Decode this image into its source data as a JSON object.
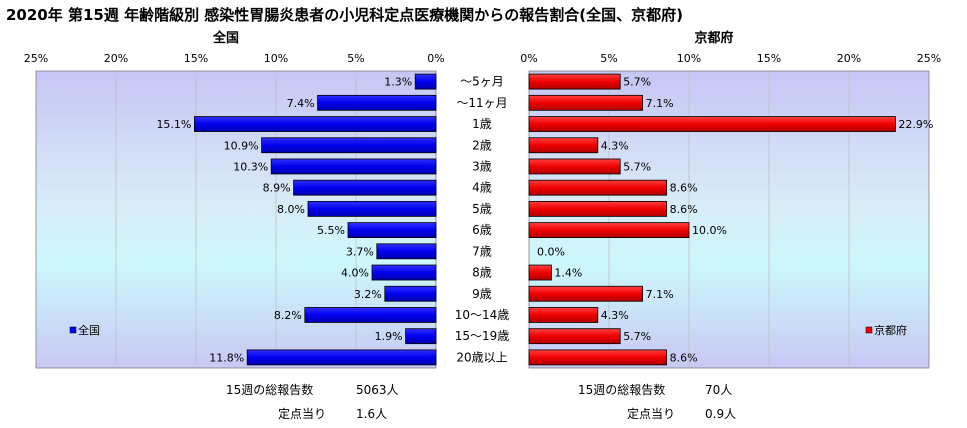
{
  "title": "2020年 第15週 年齢階級別 感染性胃腸炎患者の小児科定点医療機関からの報告割合(全国、京都府)",
  "chart_data": {
    "type": "bar",
    "orientation": "horizontal",
    "categories": [
      "～5ヶ月",
      "～11ヶ月",
      "1歳",
      "2歳",
      "3歳",
      "4歳",
      "5歳",
      "6歳",
      "7歳",
      "8歳",
      "9歳",
      "10～14歳",
      "15～19歳",
      "20歳以上"
    ],
    "xlim": [
      0,
      25
    ],
    "grid": true,
    "left_panel": {
      "title": "全国",
      "legend": "全国",
      "color": "#0000ff",
      "ticks": [
        "25%",
        "20%",
        "15%",
        "10%",
        "5%",
        "0%"
      ],
      "values": [
        1.3,
        7.4,
        15.1,
        10.9,
        10.3,
        8.9,
        8.0,
        5.5,
        3.7,
        4.0,
        3.2,
        8.2,
        1.9,
        11.8
      ],
      "labels": [
        "1.3%",
        "7.4%",
        "15.1%",
        "10.9%",
        "10.3%",
        "8.9%",
        "8.0%",
        "5.5%",
        "3.7%",
        "4.0%",
        "3.2%",
        "8.2%",
        "1.9%",
        "11.8%"
      ]
    },
    "right_panel": {
      "title": "京都府",
      "legend": "京都府",
      "color": "#ff0000",
      "ticks": [
        "0%",
        "5%",
        "10%",
        "15%",
        "20%",
        "25%"
      ],
      "values": [
        5.7,
        7.1,
        22.9,
        4.3,
        5.7,
        8.6,
        8.6,
        10.0,
        0.0,
        1.4,
        7.1,
        4.3,
        5.7,
        8.6
      ],
      "labels": [
        "5.7%",
        "7.1%",
        "22.9%",
        "4.3%",
        "5.7%",
        "8.6%",
        "8.6%",
        "10.0%",
        "0.0%",
        "1.4%",
        "7.1%",
        "4.3%",
        "5.7%",
        "8.6%"
      ]
    }
  },
  "summary": {
    "left": {
      "total_label": "15週の総報告数",
      "total_value": "5063人",
      "per_label": "定点当り",
      "per_value": "1.6人"
    },
    "right": {
      "total_label": "15週の総報告数",
      "total_value": "70人",
      "per_label": "定点当り",
      "per_value": "0.9人"
    }
  }
}
